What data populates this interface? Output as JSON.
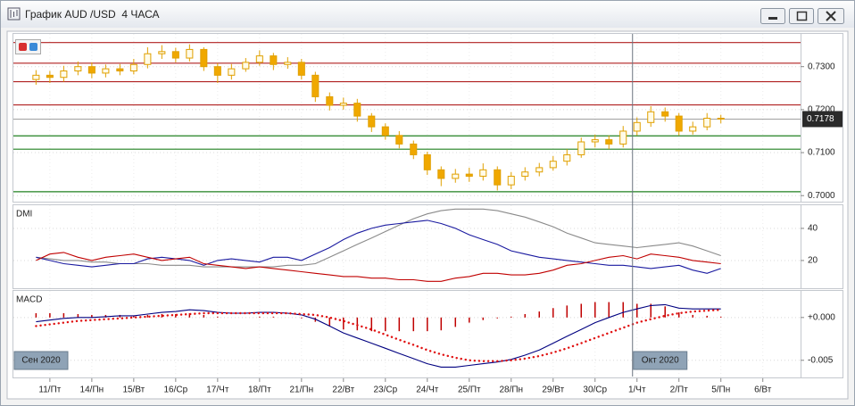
{
  "window": {
    "title": "График AUD /USD  4 ЧАСА"
  },
  "chart_data": [
    {
      "type": "candlestick",
      "x": [
        -0.33,
        0,
        0.33,
        0.67,
        1,
        1.33,
        1.67,
        2,
        2.33,
        2.67,
        3,
        3.33,
        3.67,
        4,
        4.33,
        4.67,
        5,
        5.33,
        5.67,
        6,
        6.33,
        6.67,
        7,
        7.33,
        7.67,
        8,
        8.33,
        8.67,
        9,
        9.33,
        9.67,
        10,
        10.33,
        10.67,
        11,
        11.33,
        11.67,
        12,
        12.33,
        12.67,
        13,
        13.33,
        13.67,
        14,
        14.33,
        14.67,
        15,
        15.33,
        15.67,
        16
      ],
      "open": [
        0.727,
        0.728,
        0.7275,
        0.729,
        0.73,
        0.7285,
        0.7295,
        0.729,
        0.7305,
        0.733,
        0.7335,
        0.732,
        0.734,
        0.73,
        0.728,
        0.7295,
        0.731,
        0.7325,
        0.7305,
        0.731,
        0.728,
        0.723,
        0.721,
        0.7215,
        0.7185,
        0.716,
        0.714,
        0.712,
        0.7095,
        0.706,
        0.704,
        0.705,
        0.7045,
        0.706,
        0.7025,
        0.7045,
        0.7055,
        0.7065,
        0.708,
        0.7095,
        0.7125,
        0.713,
        0.712,
        0.715,
        0.717,
        0.7195,
        0.7185,
        0.715,
        0.716,
        0.718
      ],
      "high": [
        0.7292,
        0.729,
        0.7302,
        0.7312,
        0.731,
        0.7305,
        0.7306,
        0.7318,
        0.7345,
        0.735,
        0.7344,
        0.7352,
        0.7345,
        0.7308,
        0.7306,
        0.732,
        0.7338,
        0.7332,
        0.7322,
        0.7318,
        0.7288,
        0.724,
        0.7228,
        0.7225,
        0.7192,
        0.7168,
        0.715,
        0.7128,
        0.7102,
        0.7068,
        0.7062,
        0.7065,
        0.7075,
        0.7068,
        0.7055,
        0.7066,
        0.7076,
        0.7092,
        0.7108,
        0.7135,
        0.7142,
        0.714,
        0.7162,
        0.7182,
        0.7208,
        0.7205,
        0.7192,
        0.7172,
        0.7192,
        0.7188
      ],
      "low": [
        0.7258,
        0.7262,
        0.7265,
        0.728,
        0.7273,
        0.7275,
        0.728,
        0.7282,
        0.7296,
        0.7318,
        0.731,
        0.7312,
        0.729,
        0.7262,
        0.727,
        0.7288,
        0.7302,
        0.7292,
        0.7295,
        0.727,
        0.7218,
        0.7198,
        0.72,
        0.7172,
        0.7148,
        0.713,
        0.711,
        0.7085,
        0.7048,
        0.7022,
        0.703,
        0.7032,
        0.7035,
        0.7012,
        0.7015,
        0.7035,
        0.7045,
        0.7058,
        0.707,
        0.7088,
        0.7112,
        0.7108,
        0.7112,
        0.714,
        0.716,
        0.7172,
        0.714,
        0.7142,
        0.7152,
        0.7168
      ],
      "close": [
        0.728,
        0.7275,
        0.729,
        0.73,
        0.7285,
        0.7295,
        0.729,
        0.7305,
        0.733,
        0.7335,
        0.732,
        0.734,
        0.73,
        0.728,
        0.7295,
        0.731,
        0.7325,
        0.7305,
        0.731,
        0.728,
        0.723,
        0.721,
        0.7215,
        0.7185,
        0.716,
        0.714,
        0.712,
        0.7095,
        0.706,
        0.704,
        0.705,
        0.7045,
        0.706,
        0.7025,
        0.7045,
        0.7055,
        0.7065,
        0.708,
        0.7095,
        0.7125,
        0.713,
        0.712,
        0.715,
        0.717,
        0.7195,
        0.7185,
        0.715,
        0.716,
        0.718,
        0.7178
      ],
      "up_color": "#fffbe8",
      "down_color": "#f0a800",
      "outline_color": "#e0a000",
      "xlim": [
        -0.87,
        17.9
      ],
      "xticks": [
        {
          "value": 0,
          "label": "11/Пт"
        },
        {
          "value": 1,
          "label": "14/Пн"
        },
        {
          "value": 2,
          "label": "15/Вт"
        },
        {
          "value": 3,
          "label": "16/Ср"
        },
        {
          "value": 4,
          "label": "17/Чт"
        },
        {
          "value": 5,
          "label": "18/Пт"
        },
        {
          "value": 6,
          "label": "21/Пн"
        },
        {
          "value": 7,
          "label": "22/Вт"
        },
        {
          "value": 8,
          "label": "23/Ср"
        },
        {
          "value": 9,
          "label": "24/Чт"
        },
        {
          "value": 10,
          "label": "25/Пт"
        },
        {
          "value": 11,
          "label": "28/Пн"
        },
        {
          "value": 12,
          "label": "29/Вт"
        },
        {
          "value": 13,
          "label": "30/Ср"
        },
        {
          "value": 14,
          "label": "1/Чт"
        },
        {
          "value": 15,
          "label": "2/Пт"
        },
        {
          "value": 16,
          "label": "5/Пн"
        },
        {
          "value": 17,
          "label": "6/Вт"
        }
      ],
      "ylim": [
        0.6988,
        0.7372
      ],
      "yticks": [
        {
          "value": 0.7,
          "label": "0.7000"
        },
        {
          "value": 0.71,
          "label": "0.7100"
        },
        {
          "value": 0.72,
          "label": "0.7200"
        },
        {
          "value": 0.73,
          "label": "0.7300"
        }
      ],
      "levels": [
        {
          "value": 0.7356,
          "color": "#b02020"
        },
        {
          "value": 0.7308,
          "color": "#b02020"
        },
        {
          "value": 0.7265,
          "color": "#b02020"
        },
        {
          "value": 0.7211,
          "color": "#b02020"
        },
        {
          "value": 0.7139,
          "color": "#208020"
        },
        {
          "value": 0.7108,
          "color": "#208020"
        },
        {
          "value": 0.7009,
          "color": "#208020"
        }
      ],
      "last_price": 0.7178,
      "month_labels": [
        "Сен 2020",
        "Окт 2020"
      ]
    },
    {
      "type": "line",
      "title": "DMI",
      "ylim": [
        3.3,
        53.3
      ],
      "yticks": [
        20,
        40
      ],
      "series": [
        {
          "color": "#8a8a8a",
          "values": [
            22,
            21,
            20,
            20,
            19,
            19,
            18,
            18,
            18,
            17,
            17,
            17,
            16,
            16,
            16,
            16,
            16,
            16,
            17,
            17,
            18,
            22,
            26,
            30,
            34,
            38,
            42,
            46,
            49,
            51,
            52,
            52,
            52,
            51,
            49,
            47,
            44,
            41,
            37,
            34,
            31,
            30,
            29,
            28,
            29,
            30,
            31,
            29,
            26,
            23
          ]
        },
        {
          "color": "#1a1aa0",
          "values": [
            22,
            20,
            18,
            17,
            16,
            17,
            18,
            18,
            21,
            22,
            21,
            20,
            17,
            20,
            21,
            20,
            19,
            22,
            22,
            20,
            24,
            28,
            33,
            37,
            40,
            42,
            43,
            44,
            45,
            43,
            40,
            36,
            33,
            30,
            26,
            24,
            22,
            21,
            20,
            19,
            18,
            17,
            17,
            16,
            15,
            16,
            17,
            14,
            12,
            15
          ]
        },
        {
          "color": "#c00000",
          "values": [
            20,
            24,
            25,
            22,
            20,
            22,
            23,
            24,
            22,
            20,
            21,
            22,
            18,
            17,
            16,
            15,
            16,
            15,
            14,
            13,
            12,
            11,
            10,
            10,
            9,
            9,
            8,
            8,
            7,
            7,
            9,
            10,
            12,
            12,
            11,
            11,
            12,
            14,
            17,
            18,
            20,
            22,
            23,
            21,
            24,
            23,
            22,
            20,
            19,
            18
          ]
        }
      ]
    },
    {
      "type": "macd",
      "title": "MACD",
      "ylim": [
        -0.0069,
        0.0029
      ],
      "yticks": [
        {
          "value": -0.005,
          "label": "-0.005"
        },
        {
          "value": 0,
          "label": "+0.000"
        }
      ],
      "series": [
        {
          "style": "bar",
          "color": "#c00000",
          "values": [
            0.0005,
            0.0005,
            0.0005,
            0.0004,
            0.0003,
            0.0003,
            0.0003,
            0.0002,
            0.0003,
            0.0004,
            0.0004,
            0.0005,
            0.0003,
            0.0001,
            0,
            0,
            0.0001,
            0.0001,
            0,
            -0.0001,
            -0.0005,
            -0.001,
            -0.0014,
            -0.0015,
            -0.0016,
            -0.0016,
            -0.0016,
            -0.0016,
            -0.0016,
            -0.0015,
            -0.0011,
            -0.0006,
            -0.0003,
            -0.0001,
            0.0001,
            0.0004,
            0.0007,
            0.0011,
            0.0014,
            0.0016,
            0.0018,
            0.0018,
            0.0018,
            0.0016,
            0.0016,
            0.0013,
            0.0006,
            0.0003,
            0.0002,
            0.0001
          ]
        },
        {
          "style": "line",
          "color": "#000080",
          "values": [
            -0.0005,
            -0.0003,
            -0.0001,
            0,
            0,
            0.0001,
            0.0002,
            0.0002,
            0.0004,
            0.0006,
            0.0007,
            0.0009,
            0.0008,
            0.0006,
            0.0005,
            0.0005,
            0.0006,
            0.0006,
            0.0005,
            0.0003,
            -0.0002,
            -0.001,
            -0.0018,
            -0.0024,
            -0.003,
            -0.0036,
            -0.0042,
            -0.0048,
            -0.0054,
            -0.0058,
            -0.0058,
            -0.0056,
            -0.0054,
            -0.0052,
            -0.0049,
            -0.0044,
            -0.0038,
            -0.003,
            -0.0022,
            -0.0014,
            -0.0006,
            0,
            0.0006,
            0.001,
            0.0014,
            0.0015,
            0.0011,
            0.001,
            0.001,
            0.001
          ]
        },
        {
          "style": "dots",
          "color": "#e01010",
          "values": [
            -0.001,
            -0.0008,
            -0.0006,
            -0.0004,
            -0.0003,
            -0.0002,
            -0.0001,
            0,
            0.0001,
            0.0002,
            0.0003,
            0.0004,
            0.0005,
            0.0005,
            0.0005,
            0.0005,
            0.0005,
            0.0005,
            0.0005,
            0.0004,
            0.0003,
            0,
            -0.0004,
            -0.0009,
            -0.0014,
            -0.002,
            -0.0026,
            -0.0032,
            -0.0038,
            -0.0043,
            -0.0047,
            -0.005,
            -0.0051,
            -0.0051,
            -0.005,
            -0.0048,
            -0.0045,
            -0.0041,
            -0.0036,
            -0.003,
            -0.0024,
            -0.0018,
            -0.0012,
            -0.0006,
            -0.0002,
            0.0002,
            0.0005,
            0.0007,
            0.0008,
            0.0009
          ]
        }
      ]
    }
  ]
}
